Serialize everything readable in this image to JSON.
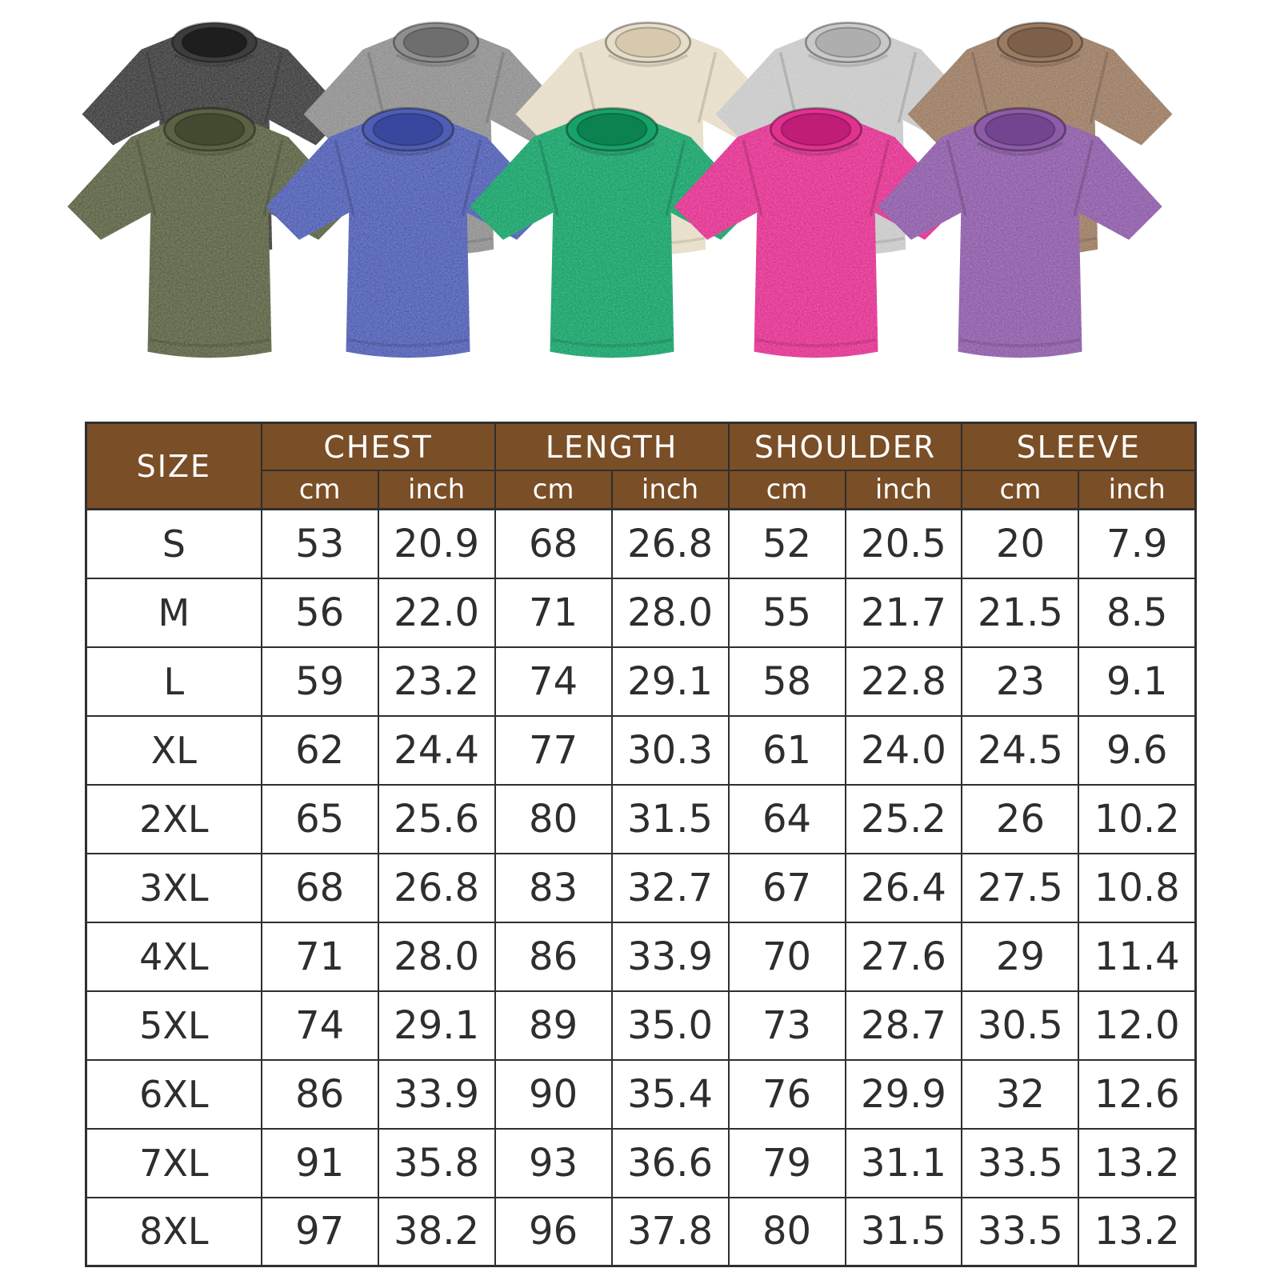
{
  "page": {
    "background": "#ffffff",
    "description_labels": {}
  },
  "products": {
    "back_row": [
      {
        "name": "washed-black",
        "body": "#3d3d3d",
        "collar": "#1e1e1e"
      },
      {
        "name": "washed-gray",
        "body": "#8f8f8f",
        "collar": "#6e6e6e"
      },
      {
        "name": "washed-cream",
        "body": "#e7ddc8",
        "collar": "#d6c9ae"
      },
      {
        "name": "washed-light-gray",
        "body": "#c9c9c9",
        "collar": "#aeaeae"
      },
      {
        "name": "washed-brown",
        "body": "#9b7b62",
        "collar": "#7d604a"
      }
    ],
    "front_row": [
      {
        "name": "washed-army-green",
        "body": "#5a6243",
        "collar": "#424b30"
      },
      {
        "name": "washed-blue",
        "body": "#4f5eb4",
        "collar": "#39489e"
      },
      {
        "name": "washed-green",
        "body": "#16a268",
        "collar": "#0c8251"
      },
      {
        "name": "washed-rose-pink",
        "body": "#e23190",
        "collar": "#c01d77"
      },
      {
        "name": "washed-purple",
        "body": "#8d5ba8",
        "collar": "#724590"
      }
    ]
  },
  "size_chart": {
    "header": {
      "size_label": "SIZE",
      "groups": [
        "CHEST",
        "LENGTH",
        "SHOULDER",
        "SLEEVE"
      ],
      "units": [
        "cm",
        "inch",
        "cm",
        "inch",
        "cm",
        "inch",
        "cm",
        "inch"
      ],
      "bg_color": "#7a4e26",
      "text_color": "#ffffff",
      "line_color": "#2f2f2f"
    },
    "rows": [
      [
        "S",
        "53",
        "20.9",
        "68",
        "26.8",
        "52",
        "20.5",
        "20",
        "7.9"
      ],
      [
        "M",
        "56",
        "22.0",
        "71",
        "28.0",
        "55",
        "21.7",
        "21.5",
        "8.5"
      ],
      [
        "L",
        "59",
        "23.2",
        "74",
        "29.1",
        "58",
        "22.8",
        "23",
        "9.1"
      ],
      [
        "XL",
        "62",
        "24.4",
        "77",
        "30.3",
        "61",
        "24.0",
        "24.5",
        "9.6"
      ],
      [
        "2XL",
        "65",
        "25.6",
        "80",
        "31.5",
        "64",
        "25.2",
        "26",
        "10.2"
      ],
      [
        "3XL",
        "68",
        "26.8",
        "83",
        "32.7",
        "67",
        "26.4",
        "27.5",
        "10.8"
      ],
      [
        "4XL",
        "71",
        "28.0",
        "86",
        "33.9",
        "70",
        "27.6",
        "29",
        "11.4"
      ],
      [
        "5XL",
        "74",
        "29.1",
        "89",
        "35.0",
        "73",
        "28.7",
        "30.5",
        "12.0"
      ],
      [
        "6XL",
        "86",
        "33.9",
        "90",
        "35.4",
        "76",
        "29.9",
        "32",
        "12.6"
      ],
      [
        "7XL",
        "91",
        "35.8",
        "93",
        "36.6",
        "79",
        "31.1",
        "33.5",
        "13.2"
      ],
      [
        "8XL",
        "97",
        "38.2",
        "96",
        "37.8",
        "80",
        "31.5",
        "33.5",
        "13.2"
      ]
    ]
  }
}
